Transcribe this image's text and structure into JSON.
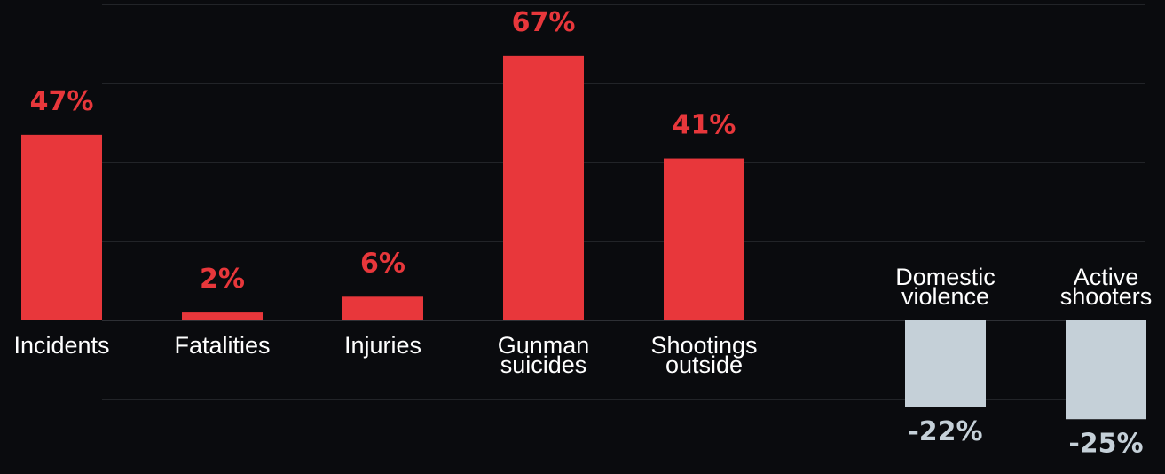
{
  "chart_data": {
    "type": "bar",
    "categories": [
      [
        "Incidents"
      ],
      [
        "Fatalities"
      ],
      [
        "Injuries"
      ],
      [
        "Gunman",
        "suicides"
      ],
      [
        "Shootings",
        "outside"
      ],
      [
        "Domestic",
        "violence"
      ],
      [
        "Active",
        "shooters"
      ]
    ],
    "values": [
      47,
      2,
      6,
      67,
      41,
      -22,
      -25
    ],
    "value_labels": [
      "47%",
      "2%",
      "6%",
      "67%",
      "41%",
      "-22%",
      "-25%"
    ],
    "ylim": [
      -20,
      80
    ],
    "grid": true,
    "colors": {
      "positive": "#e8373b",
      "negative": "#c5d0d8",
      "background": "#0a0b0e",
      "gridline": "#3a3c42",
      "category_text": "#ffffff"
    }
  }
}
